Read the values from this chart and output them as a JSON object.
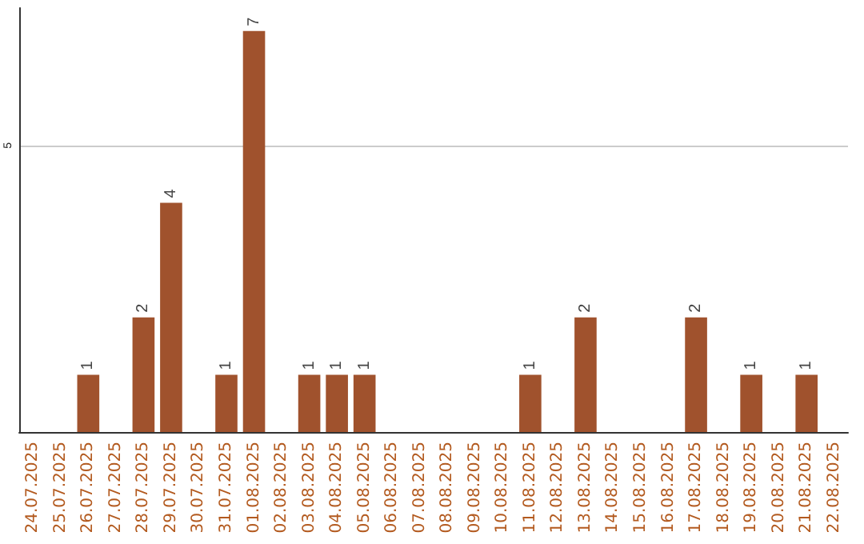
{
  "chart_data": {
    "type": "bar",
    "categories": [
      "24.07.2025",
      "25.07.2025",
      "26.07.2025",
      "27.07.2025",
      "28.07.2025",
      "29.07.2025",
      "30.07.2025",
      "31.07.2025",
      "01.08.2025",
      "02.08.2025",
      "03.08.2025",
      "04.08.2025",
      "05.08.2025",
      "06.08.2025",
      "07.08.2025",
      "08.08.2025",
      "09.08.2025",
      "10.08.2025",
      "11.08.2025",
      "12.08.2025",
      "13.08.2025",
      "14.08.2025",
      "15.08.2025",
      "16.08.2025",
      "17.08.2025",
      "18.08.2025",
      "19.08.2025",
      "20.08.2025",
      "21.08.2025",
      "22.08.2025"
    ],
    "values": [
      0,
      0,
      1,
      0,
      2,
      4,
      0,
      1,
      7,
      0,
      1,
      1,
      1,
      0,
      0,
      0,
      0,
      0,
      1,
      0,
      2,
      0,
      0,
      0,
      2,
      0,
      1,
      0,
      1,
      0
    ],
    "value_labels": [
      null,
      null,
      "1",
      null,
      "2",
      "4",
      null,
      "1",
      "7",
      null,
      "1",
      "1",
      "1",
      null,
      null,
      null,
      null,
      null,
      "1",
      null,
      "2",
      null,
      null,
      null,
      "2",
      null,
      "1",
      null,
      "1",
      null
    ],
    "color": "#a0522d",
    "ylim": [
      0,
      7.4
    ],
    "yticks": [
      5
    ],
    "grid": "y"
  }
}
